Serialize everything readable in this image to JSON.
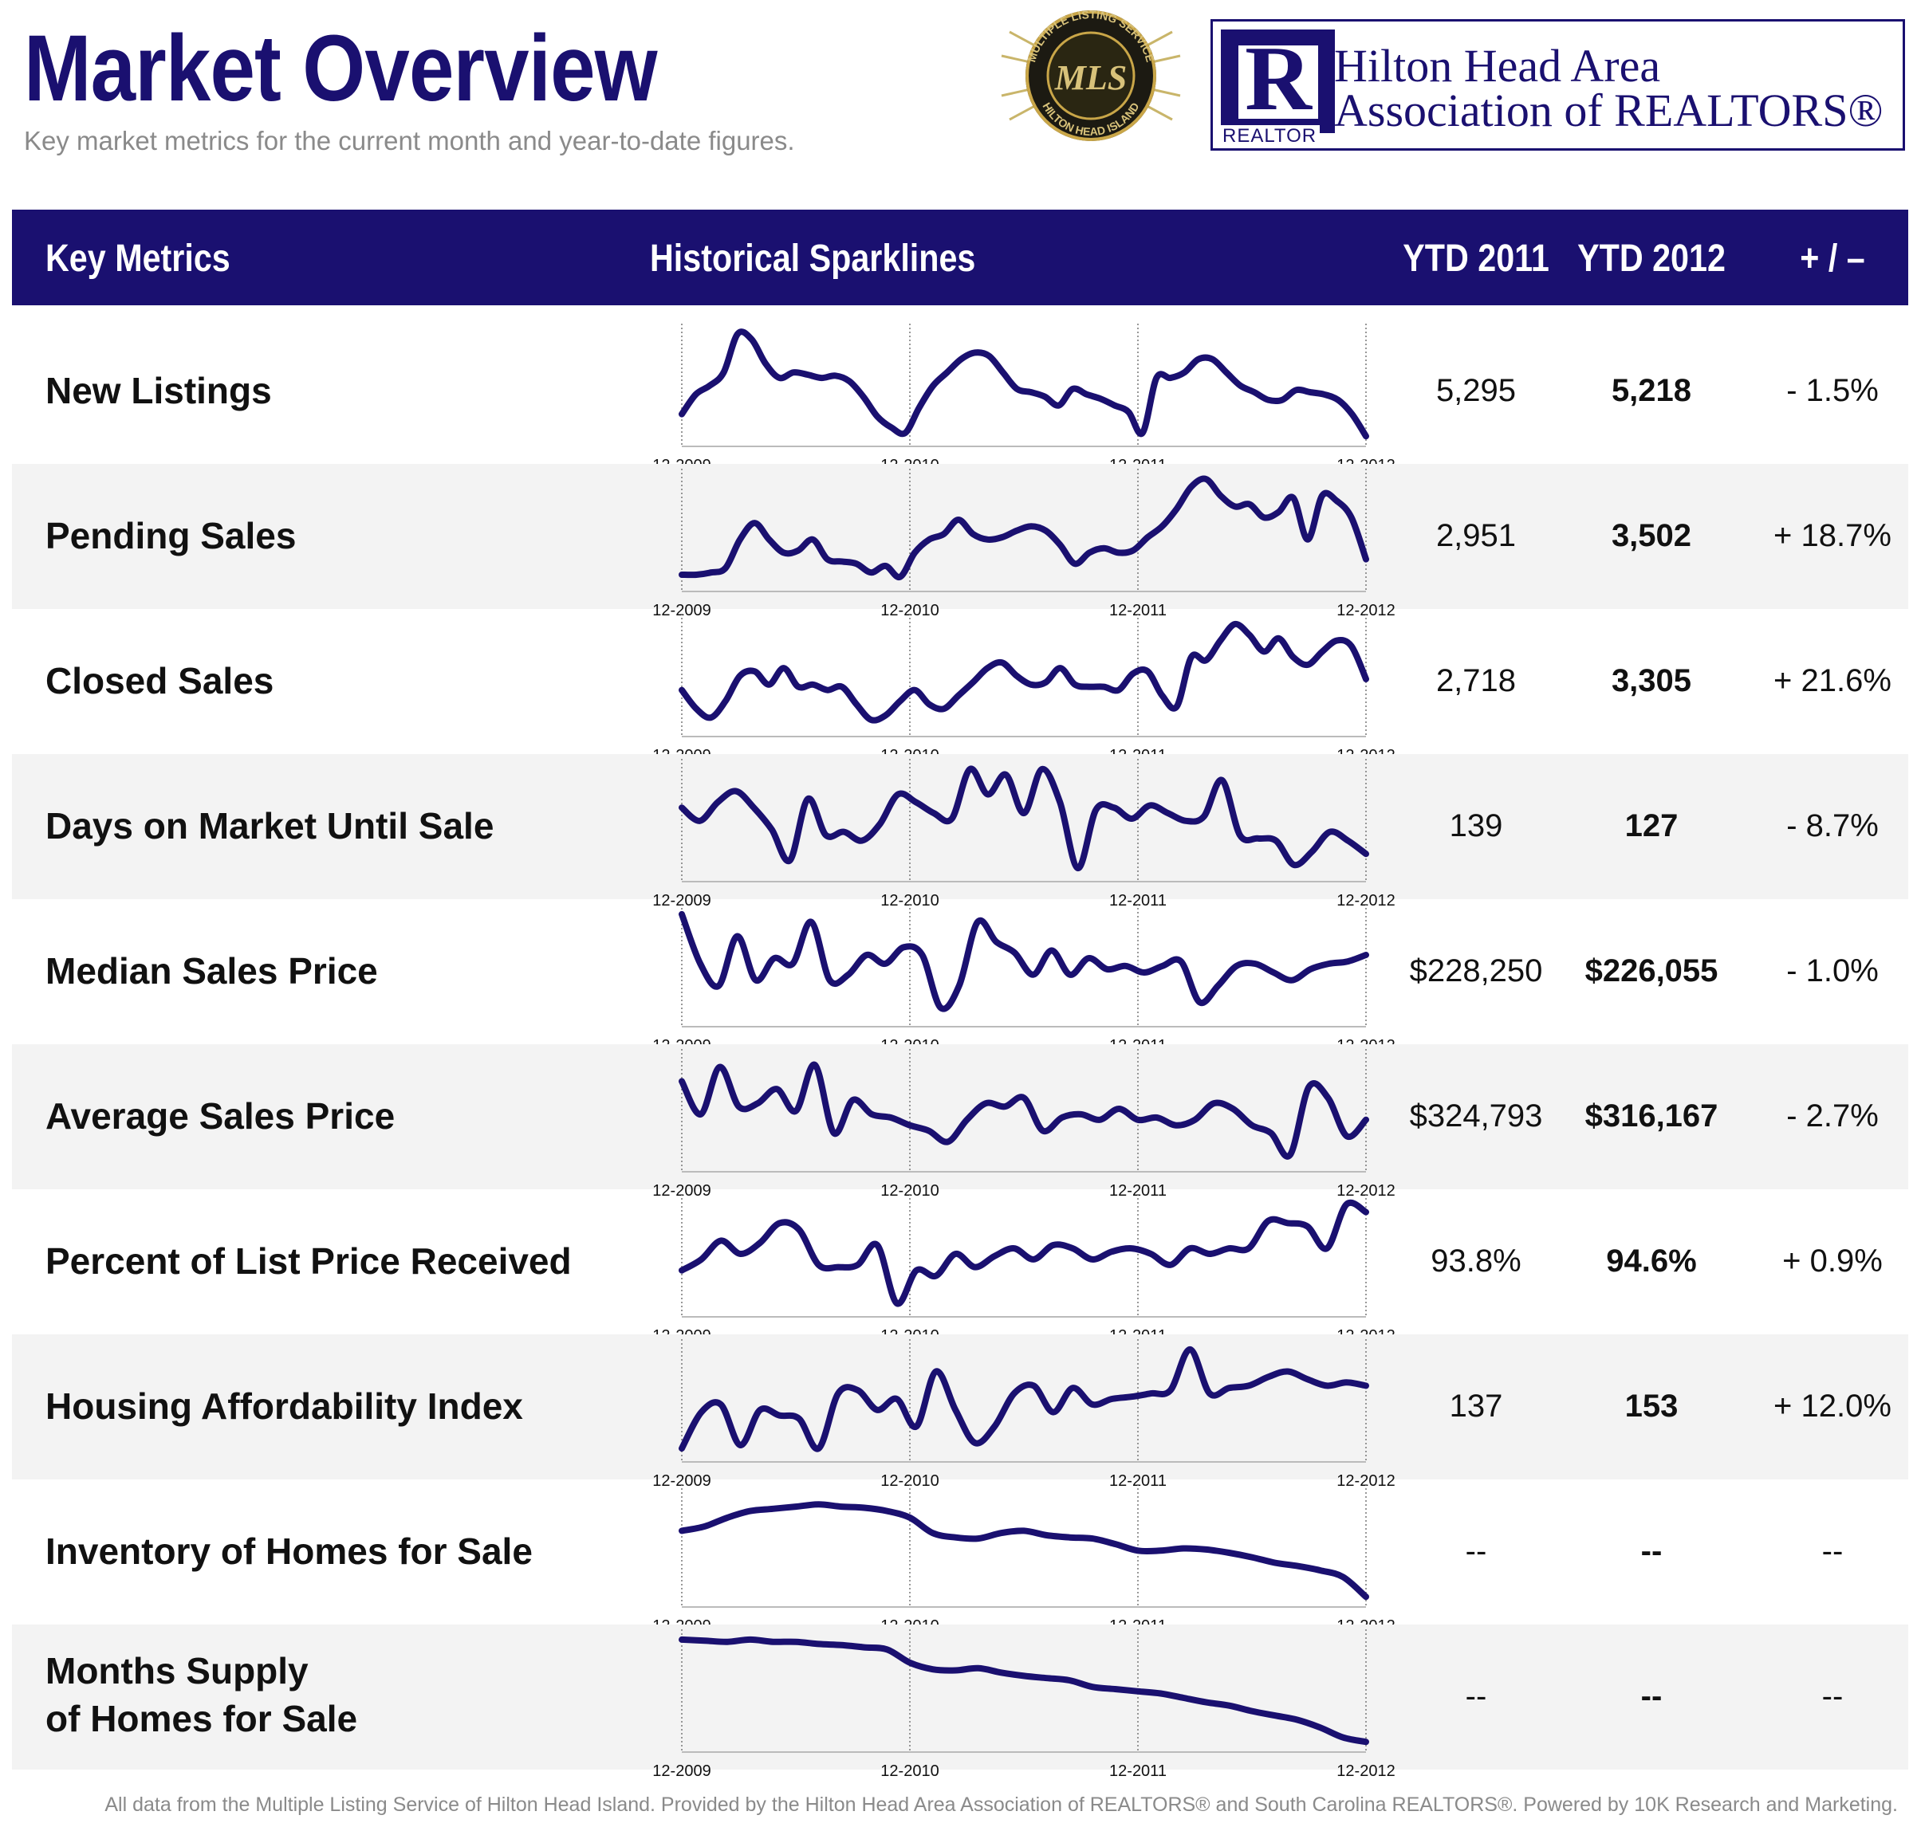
{
  "header": {
    "title": "Market Overview",
    "subtitle": "Key market metrics for the current month and year-to-date figures."
  },
  "logos": {
    "mls_ring_top": "MULTIPLE LISTING SERVICE",
    "mls_ring_bottom": "HILTON HEAD ISLAND",
    "mls_initials": "MLS",
    "assoc_line1": "Hilton Head Area",
    "assoc_line2": "Association of REALTORS®",
    "realtor_caption": "REALTOR",
    "realtor_letter": "R"
  },
  "table": {
    "col_metrics": "Key Metrics",
    "col_sparklines": "Historical Sparklines",
    "col_ytd2011": "YTD 2011",
    "col_ytd2012": "YTD 2012",
    "col_change": "+ / –"
  },
  "colors": {
    "navy": "#1a1070",
    "row_shade": "#f3f3f3",
    "gray_text": "#8a8a8a"
  },
  "chart_data": {
    "type": "line",
    "x_ticks": [
      "12-2009",
      "12-2010",
      "12-2011",
      "12-2012"
    ],
    "rows": [
      {
        "label": "New Listings",
        "ytd2011": "5,295",
        "ytd2012": "5,218",
        "change": "- 1.5%",
        "values": [
          0.22,
          0.4,
          0.48,
          0.6,
          0.95,
          0.9,
          0.68,
          0.55,
          0.6,
          0.58,
          0.55,
          0.57,
          0.52,
          0.38,
          0.2,
          0.1,
          0.05,
          0.28,
          0.48,
          0.6,
          0.72,
          0.78,
          0.75,
          0.6,
          0.45,
          0.42,
          0.38,
          0.3,
          0.45,
          0.4,
          0.36,
          0.3,
          0.24,
          0.05,
          0.55,
          0.55,
          0.6,
          0.72,
          0.72,
          0.6,
          0.48,
          0.42,
          0.35,
          0.35,
          0.44,
          0.42,
          0.4,
          0.35,
          0.22,
          0.02
        ]
      },
      {
        "label": "Pending Sales",
        "ytd2011": "2,951",
        "ytd2012": "3,502",
        "change": "+ 18.7%",
        "values": [
          0.08,
          0.08,
          0.1,
          0.14,
          0.4,
          0.55,
          0.4,
          0.28,
          0.3,
          0.4,
          0.22,
          0.2,
          0.18,
          0.1,
          0.16,
          0.06,
          0.28,
          0.4,
          0.45,
          0.58,
          0.45,
          0.4,
          0.42,
          0.48,
          0.52,
          0.48,
          0.35,
          0.18,
          0.28,
          0.32,
          0.28,
          0.3,
          0.42,
          0.52,
          0.68,
          0.88,
          0.95,
          0.8,
          0.7,
          0.72,
          0.6,
          0.65,
          0.78,
          0.4,
          0.8,
          0.75,
          0.6,
          0.22
        ]
      },
      {
        "label": "Closed Sales",
        "ytd2011": "2,718",
        "ytd2012": "3,305",
        "change": "+ 21.6%",
        "values": [
          0.35,
          0.18,
          0.1,
          0.25,
          0.48,
          0.52,
          0.4,
          0.55,
          0.38,
          0.4,
          0.35,
          0.38,
          0.22,
          0.08,
          0.12,
          0.25,
          0.35,
          0.22,
          0.18,
          0.3,
          0.42,
          0.55,
          0.6,
          0.48,
          0.4,
          0.42,
          0.55,
          0.4,
          0.38,
          0.38,
          0.35,
          0.5,
          0.52,
          0.3,
          0.2,
          0.65,
          0.62,
          0.8,
          0.95,
          0.85,
          0.7,
          0.82,
          0.65,
          0.58,
          0.7,
          0.8,
          0.75,
          0.45
        ]
      },
      {
        "label": "Days on Market Until Sale",
        "ytd2011": "139",
        "ytd2012": "127",
        "change": "- 8.7%",
        "values": [
          0.6,
          0.48,
          0.65,
          0.75,
          0.6,
          0.4,
          0.12,
          0.68,
          0.35,
          0.38,
          0.3,
          0.45,
          0.72,
          0.65,
          0.55,
          0.5,
          0.95,
          0.72,
          0.9,
          0.55,
          0.95,
          0.65,
          0.05,
          0.58,
          0.6,
          0.5,
          0.62,
          0.55,
          0.48,
          0.52,
          0.85,
          0.35,
          0.32,
          0.3,
          0.08,
          0.2,
          0.38,
          0.3,
          0.18
        ]
      },
      {
        "label": "Median Sales Price",
        "ytd2011": "$228,250",
        "ytd2012": "$226,055",
        "change": "- 1.0%",
        "values": [
          0.95,
          0.5,
          0.3,
          0.75,
          0.35,
          0.55,
          0.5,
          0.88,
          0.35,
          0.4,
          0.58,
          0.5,
          0.65,
          0.58,
          0.1,
          0.3,
          0.88,
          0.7,
          0.6,
          0.4,
          0.62,
          0.4,
          0.55,
          0.45,
          0.48,
          0.42,
          0.48,
          0.52,
          0.15,
          0.3,
          0.48,
          0.5,
          0.42,
          0.35,
          0.45,
          0.5,
          0.52,
          0.58
        ]
      },
      {
        "label": "Average Sales Price",
        "ytd2011": "$324,793",
        "ytd2012": "$316,167",
        "change": "- 2.7%",
        "values": [
          0.75,
          0.45,
          0.88,
          0.52,
          0.55,
          0.68,
          0.48,
          0.9,
          0.28,
          0.58,
          0.45,
          0.42,
          0.35,
          0.3,
          0.2,
          0.4,
          0.55,
          0.52,
          0.6,
          0.3,
          0.42,
          0.45,
          0.4,
          0.5,
          0.4,
          0.42,
          0.35,
          0.4,
          0.55,
          0.5,
          0.35,
          0.28,
          0.08,
          0.7,
          0.6,
          0.25,
          0.4
        ]
      },
      {
        "label": "Percent of List Price Received",
        "ytd2011": "93.8%",
        "ytd2012": "94.6%",
        "change": "+ 0.9%",
        "values": [
          0.35,
          0.45,
          0.62,
          0.5,
          0.6,
          0.78,
          0.72,
          0.4,
          0.38,
          0.4,
          0.58,
          0.05,
          0.35,
          0.3,
          0.5,
          0.38,
          0.48,
          0.55,
          0.45,
          0.58,
          0.55,
          0.45,
          0.52,
          0.55,
          0.5,
          0.4,
          0.55,
          0.5,
          0.55,
          0.55,
          0.8,
          0.78,
          0.75,
          0.55,
          0.95,
          0.88
        ]
      },
      {
        "label": "Housing Affordability Index",
        "ytd2011": "137",
        "ytd2012": "153",
        "change": "+ 12.0%",
        "values": [
          0.05,
          0.38,
          0.45,
          0.08,
          0.4,
          0.35,
          0.32,
          0.05,
          0.55,
          0.58,
          0.4,
          0.5,
          0.25,
          0.75,
          0.4,
          0.1,
          0.25,
          0.55,
          0.62,
          0.38,
          0.6,
          0.45,
          0.5,
          0.52,
          0.55,
          0.58,
          0.95,
          0.55,
          0.6,
          0.62,
          0.7,
          0.75,
          0.68,
          0.62,
          0.65,
          0.62
        ]
      },
      {
        "label": "Inventory of Homes for Sale",
        "ytd2011": "--",
        "ytd2012": "--",
        "change": "--",
        "values": [
          0.62,
          0.66,
          0.74,
          0.8,
          0.82,
          0.84,
          0.86,
          0.84,
          0.83,
          0.8,
          0.74,
          0.6,
          0.56,
          0.55,
          0.6,
          0.62,
          0.58,
          0.56,
          0.55,
          0.5,
          0.44,
          0.44,
          0.46,
          0.45,
          0.42,
          0.38,
          0.33,
          0.3,
          0.26,
          0.2,
          0.02
        ]
      },
      {
        "label": "Months Supply\nof Homes for Sale",
        "ytd2011": "--",
        "ytd2012": "--",
        "change": "--",
        "values": [
          0.95,
          0.94,
          0.93,
          0.95,
          0.93,
          0.93,
          0.91,
          0.9,
          0.88,
          0.86,
          0.74,
          0.68,
          0.67,
          0.69,
          0.65,
          0.62,
          0.6,
          0.58,
          0.52,
          0.5,
          0.48,
          0.46,
          0.42,
          0.38,
          0.35,
          0.3,
          0.26,
          0.22,
          0.15,
          0.06,
          0.02
        ]
      }
    ]
  },
  "footer": {
    "text": "All data from the Multiple Listing Service of Hilton Head Island. Provided by the Hilton Head Area Association of REALTORS® and South Carolina REALTORS®. Powered by 10K Research and Marketing."
  }
}
